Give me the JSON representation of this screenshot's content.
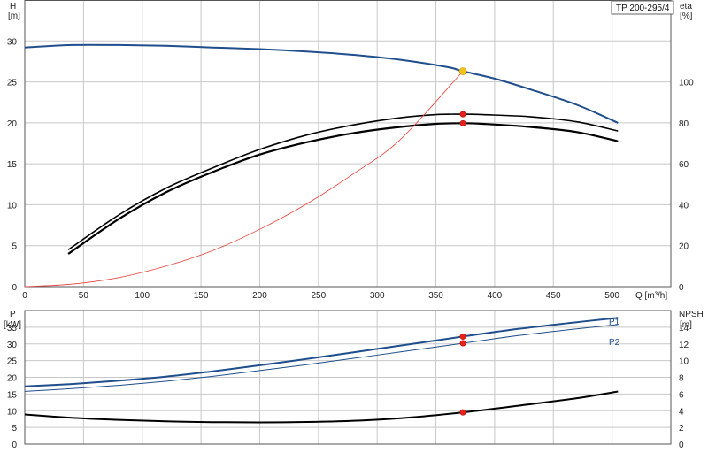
{
  "chart_data": [
    {
      "type": "line",
      "model": "TP 200-295/4",
      "left_axis": {
        "label_line1": "H",
        "label_line2": "[m]",
        "ylim": [
          0,
          35
        ],
        "ticks": [
          0,
          5,
          10,
          15,
          20,
          25,
          30
        ]
      },
      "right_axis": {
        "label_line1": "eta",
        "label_line2": "[%]",
        "ylim": [
          0,
          140
        ],
        "ticks": [
          0,
          20,
          40,
          60,
          80,
          100
        ]
      },
      "x_axis": {
        "label": "Q [m³/h]",
        "xlim": [
          0,
          550
        ],
        "ticks": [
          0,
          50,
          100,
          150,
          200,
          250,
          300,
          350,
          400,
          450,
          500
        ]
      },
      "grid": true,
      "colors": {
        "head": "#1f4e8c",
        "efficiency": "#000000",
        "system": "#e8413a",
        "duty_point": "#f2c21b",
        "marker": "#e8201a"
      },
      "series": [
        {
          "key": "head",
          "axis": "left",
          "x": [
            0,
            40,
            80,
            120,
            160,
            200,
            240,
            280,
            320,
            360,
            373,
            400,
            430,
            470,
            505
          ],
          "y": [
            29.2,
            29.5,
            29.5,
            29.4,
            29.2,
            29.0,
            28.7,
            28.3,
            27.7,
            26.8,
            26.3,
            25.4,
            24.1,
            22.2,
            20.0
          ]
        },
        {
          "key": "eta_upper",
          "axis": "right",
          "x": [
            37,
            80,
            120,
            160,
            200,
            240,
            280,
            320,
            350,
            373,
            390,
            430,
            470,
            505
          ],
          "y": [
            18,
            35,
            48,
            58,
            67,
            74,
            79,
            82.5,
            84,
            84.2,
            84,
            83,
            80.5,
            76
          ]
        },
        {
          "key": "eta_lower",
          "axis": "right",
          "x": [
            37,
            80,
            120,
            160,
            200,
            240,
            280,
            320,
            350,
            373,
            390,
            430,
            470,
            505
          ],
          "y": [
            16,
            33,
            46,
            56,
            64.5,
            70.5,
            75,
            78,
            79.5,
            79.8,
            79.5,
            78,
            75.5,
            71
          ]
        },
        {
          "key": "system",
          "axis": "left",
          "x": [
            0,
            40,
            80,
            120,
            160,
            200,
            240,
            280,
            320,
            373
          ],
          "y": [
            0,
            0.3,
            1.1,
            2.5,
            4.4,
            7.0,
            10.1,
            13.8,
            18.0,
            26.3
          ]
        }
      ],
      "points": [
        {
          "key": "duty",
          "axis": "left",
          "x": 373,
          "y": 26.3
        },
        {
          "key": "eta_upper_point",
          "axis": "right",
          "x": 373,
          "y": 84.2
        },
        {
          "key": "eta_lower_point",
          "axis": "right",
          "x": 373,
          "y": 79.8
        }
      ]
    },
    {
      "type": "line",
      "left_axis": {
        "label_line1": "P",
        "label_line2": "[kW]",
        "ylim": [
          0,
          40
        ],
        "ticks": [
          0,
          5,
          10,
          15,
          20,
          25,
          30,
          35
        ]
      },
      "right_axis": {
        "label_line1": "NPSH",
        "label_line2": "[m]",
        "ylim": [
          0,
          16
        ],
        "ticks": [
          0,
          2,
          4,
          6,
          8,
          10,
          12,
          14
        ]
      },
      "x_axis": {
        "xlim": [
          0,
          550
        ]
      },
      "grid": true,
      "colors": {
        "p1": "#1f4e8c",
        "p2": "#1f4e8c",
        "npsh": "#000000",
        "marker": "#e8201a"
      },
      "series": [
        {
          "key": "P1",
          "name": "P1",
          "axis": "left",
          "x": [
            0,
            40,
            80,
            120,
            160,
            200,
            240,
            280,
            320,
            373,
            420,
            470,
            505
          ],
          "y": [
            17.3,
            18.0,
            19.0,
            20.2,
            21.8,
            23.6,
            25.5,
            27.5,
            29.5,
            32.2,
            34.5,
            36.5,
            37.8
          ]
        },
        {
          "key": "P2",
          "name": "P2",
          "axis": "left",
          "x": [
            0,
            40,
            80,
            120,
            160,
            200,
            240,
            280,
            320,
            373,
            420,
            470,
            505
          ],
          "y": [
            15.8,
            16.6,
            17.6,
            18.8,
            20.3,
            22.0,
            23.8,
            25.7,
            27.6,
            30.2,
            32.5,
            34.5,
            35.8
          ]
        },
        {
          "key": "NPSH",
          "axis": "right",
          "x": [
            0,
            40,
            80,
            120,
            160,
            200,
            240,
            280,
            320,
            373,
            420,
            470,
            505
          ],
          "y": [
            3.55,
            3.15,
            2.9,
            2.72,
            2.63,
            2.6,
            2.65,
            2.8,
            3.1,
            3.8,
            4.6,
            5.5,
            6.3
          ]
        }
      ],
      "points": [
        {
          "key": "p1_point",
          "axis": "left",
          "x": 373,
          "y": 32.2
        },
        {
          "key": "p2_point",
          "axis": "left",
          "x": 373,
          "y": 30.2
        },
        {
          "key": "npsh_point",
          "axis": "right",
          "x": 373,
          "y": 3.8
        }
      ]
    }
  ]
}
